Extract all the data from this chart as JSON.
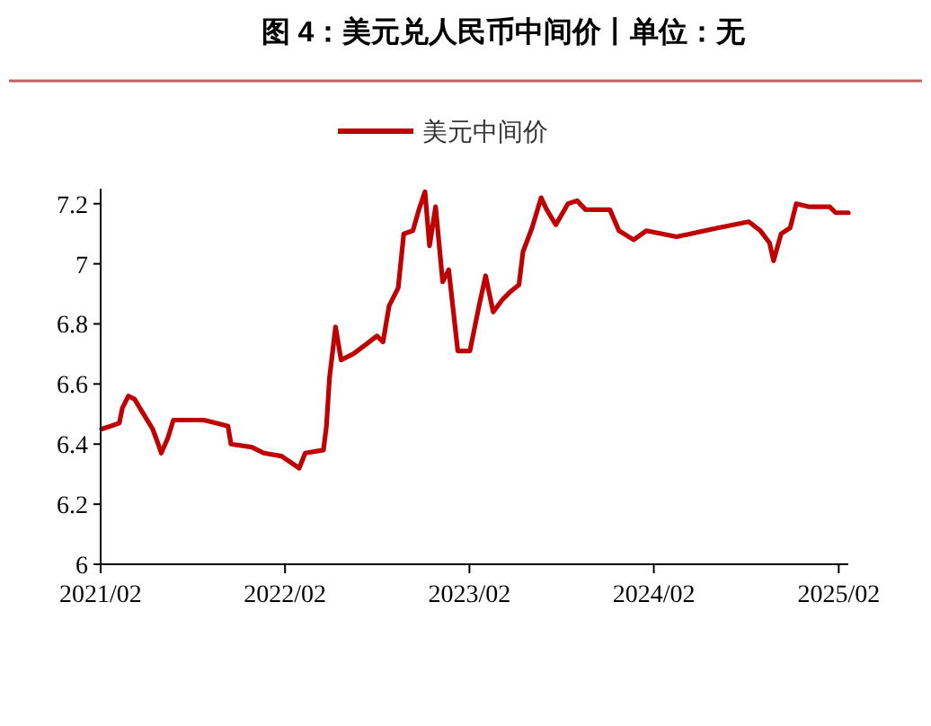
{
  "chart_data": {
    "type": "line",
    "title": "图 4：美元兑人民币中间价丨单位：无",
    "x": [
      "2021-02-03",
      "2021-02-21",
      "2021-03-10",
      "2021-03-16",
      "2021-03-28",
      "2021-04-09",
      "2021-04-27",
      "2021-05-15",
      "2021-05-26",
      "2021-06-01",
      "2021-06-14",
      "2021-06-25",
      "2021-08-01",
      "2021-08-24",
      "2021-09-17",
      "2021-10-11",
      "2021-10-17",
      "2021-11-27",
      "2021-12-21",
      "2022-01-25",
      "2022-03-01",
      "2022-03-13",
      "2022-04-18",
      "2022-04-24",
      "2022-04-30",
      "2022-05-12",
      "2022-05-23",
      "2022-06-16",
      "2022-07-10",
      "2022-08-02",
      "2022-08-14",
      "2022-08-26",
      "2022-09-13",
      "2022-09-24",
      "2022-10-12",
      "2022-10-24",
      "2022-11-05",
      "2022-11-14",
      "2022-11-26",
      "2022-12-10",
      "2022-12-22",
      "2023-01-09",
      "2023-02-02",
      "2023-02-20",
      "2023-03-05",
      "2023-03-20",
      "2023-04-07",
      "2023-04-25",
      "2023-05-10",
      "2023-05-18",
      "2023-06-05",
      "2023-06-23",
      "2023-07-04",
      "2023-07-22",
      "2023-08-15",
      "2023-09-02",
      "2023-09-19",
      "2023-11-06",
      "2023-11-24",
      "2023-12-23",
      "2024-01-17",
      "2024-03-17",
      "2024-06-08",
      "2024-08-07",
      "2024-08-30",
      "2024-09-17",
      "2024-09-25",
      "2024-10-10",
      "2024-10-28",
      "2024-11-09",
      "2024-12-03",
      "2025-01-14",
      "2025-01-26",
      "2025-02-20"
    ],
    "series": [
      {
        "name": "美元中间价",
        "color": "#c00000",
        "values": [
          6.45,
          6.46,
          6.47,
          6.52,
          6.56,
          6.55,
          6.5,
          6.45,
          6.4,
          6.37,
          6.42,
          6.48,
          6.48,
          6.48,
          6.47,
          6.46,
          6.4,
          6.39,
          6.37,
          6.36,
          6.32,
          6.37,
          6.38,
          6.46,
          6.62,
          6.79,
          6.68,
          6.7,
          6.73,
          6.76,
          6.74,
          6.86,
          6.92,
          7.1,
          7.11,
          7.18,
          7.24,
          7.06,
          7.19,
          6.94,
          6.98,
          6.71,
          6.71,
          6.86,
          6.96,
          6.84,
          6.88,
          6.91,
          6.93,
          7.04,
          7.12,
          7.22,
          7.18,
          7.13,
          7.2,
          7.21,
          7.18,
          7.18,
          7.11,
          7.08,
          7.11,
          7.09,
          7.12,
          7.14,
          7.11,
          7.07,
          7.01,
          7.1,
          7.12,
          7.2,
          7.19,
          7.19,
          7.17,
          7.17
        ]
      }
    ],
    "xlim": [
      "2021-02-01",
      "2025-02-20"
    ],
    "xticks": [
      {
        "value": "2021-02",
        "label": "2021/02"
      },
      {
        "value": "2022-02",
        "label": "2022/02"
      },
      {
        "value": "2023-02",
        "label": "2023/02"
      },
      {
        "value": "2024-02",
        "label": "2024/02"
      },
      {
        "value": "2025-02",
        "label": "2025/02"
      }
    ],
    "ylim": [
      6,
      7.25
    ],
    "yticks": [
      6,
      6.2,
      6.4,
      6.6,
      6.8,
      7,
      7.2
    ],
    "legend": "top",
    "grid": false,
    "marker": "none",
    "line_style": "solid"
  }
}
